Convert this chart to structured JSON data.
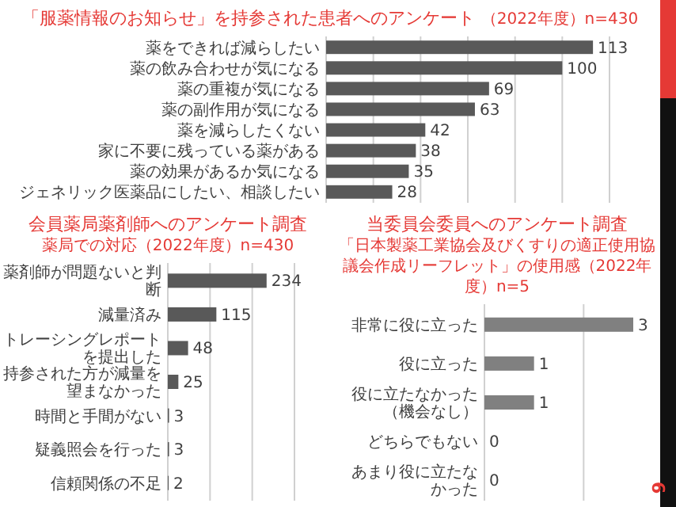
{
  "chart_data": [
    {
      "type": "bar",
      "orientation": "horizontal",
      "title": "「服薬情報のお知らせ」を持参された患者へのアンケート",
      "subtitle": "（2022年度）n=430",
      "categories": [
        "薬をできれば減らしたい",
        "薬の飲み合わせが気になる",
        "薬の重複が気になる",
        "薬の副作用が気になる",
        "薬を減らしたくない",
        "家に不要に残っている薬がある",
        "薬の効果があるか気になる",
        "ジェネリック医薬品にしたい、相談したい"
      ],
      "values": [
        113,
        100,
        69,
        63,
        42,
        38,
        35,
        28
      ],
      "color": "#595959",
      "xlim": [
        0,
        120
      ],
      "xticks": [
        {
          "value": 0,
          "label": null
        },
        {
          "value": 20,
          "label": null
        },
        {
          "value": 40,
          "label": null
        },
        {
          "value": 60,
          "label": null
        },
        {
          "value": 80,
          "label": null
        },
        {
          "value": 100,
          "label": null
        },
        {
          "value": 120,
          "label": null
        }
      ],
      "grid": "x",
      "tick_labels": "y",
      "data_labels": true
    },
    {
      "type": "bar",
      "orientation": "horizontal",
      "title": "会員薬局薬剤師へのアンケート調査",
      "subtitle": "薬局での対応（2022年度）n=430",
      "categories": [
        "薬剤師が問題ないと判断",
        "減量済み",
        "トレーシングレポートを提出した",
        "持参された方が減量を望まなかった",
        "時間と手間がない",
        "疑義照会を行った",
        "信頼関係の不足"
      ],
      "values": [
        234,
        115,
        48,
        25,
        3,
        3,
        2
      ],
      "color": "#595959",
      "xlim": [
        0,
        300
      ],
      "xticks": [
        {
          "value": 0,
          "label": null
        },
        {
          "value": 100,
          "label": null
        },
        {
          "value": 200,
          "label": null
        },
        {
          "value": 300,
          "label": null
        }
      ],
      "grid": "x",
      "tick_labels": "y",
      "data_labels": true
    },
    {
      "type": "bar",
      "orientation": "horizontal",
      "title": "当委員会委員へのアンケート調査",
      "subtitle": "「日本製薬工業協会及びくすりの適正使用協議会作成リーフレット」の使用感（2022年度）n=5",
      "categories": [
        "非常に役に立った",
        "役に立った",
        "役に立たなかった（機会なし）",
        "どちらでもない",
        "あまり役に立たなかった"
      ],
      "values": [
        3,
        1,
        1,
        0,
        0
      ],
      "color": "#808080",
      "xlim": [
        0,
        3
      ],
      "xticks": [
        {
          "value": 0,
          "label": null
        },
        {
          "value": 2,
          "label": null
        }
      ],
      "grid": "x",
      "tick_labels": "y",
      "data_labels": true,
      "annotations": [
        "6"
      ]
    }
  ]
}
